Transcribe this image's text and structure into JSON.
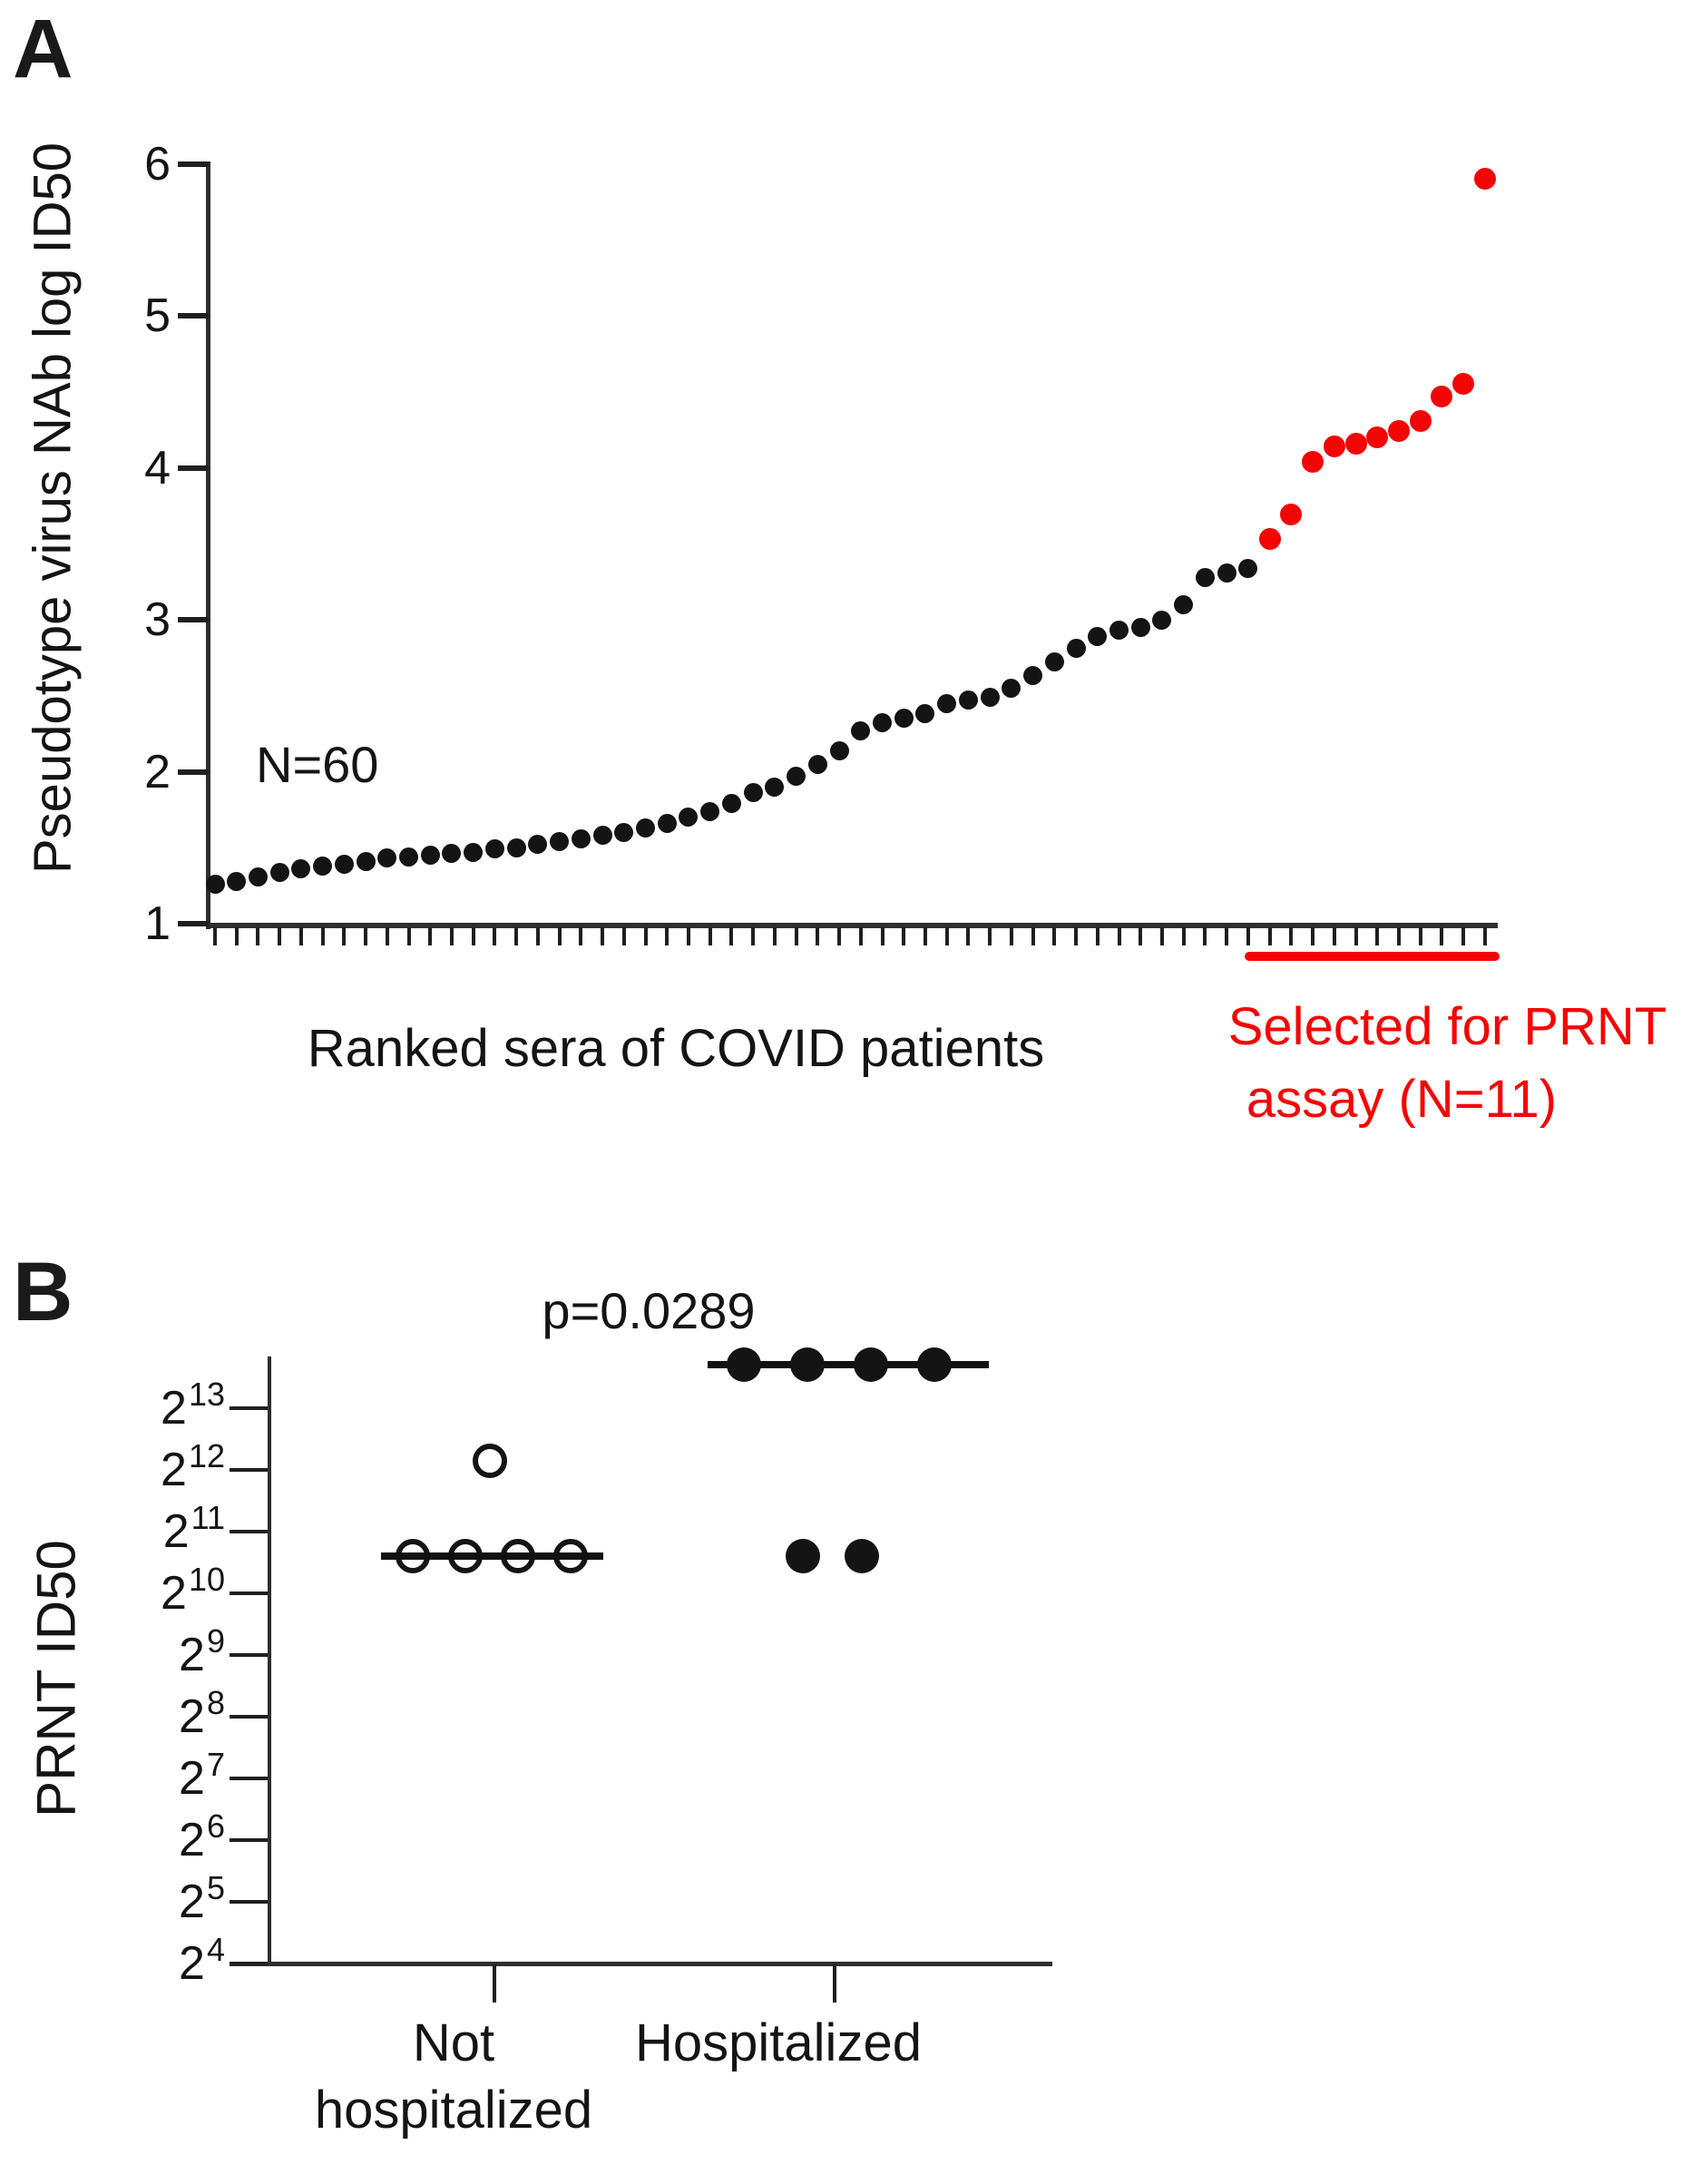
{
  "figure": {
    "panel_a_label": "A",
    "panel_b_label": "B",
    "background": "#ffffff",
    "ink_color": "#141414",
    "accent_red": "#f40505"
  },
  "chart_data": [
    {
      "type": "scatter",
      "panel": "A",
      "title": "",
      "xlabel": "Ranked sera of COVID patients",
      "ylabel": "Pseudotype virus NAb log ID50",
      "ylim": [
        1,
        6
      ],
      "yticks": [
        1,
        2,
        3,
        4,
        5,
        6
      ],
      "x_tick_count": 60,
      "grid": false,
      "n_label": "N=60",
      "selected_label_line1": "Selected for PRNT",
      "selected_label_line2": "assay (N=11)",
      "point_color": "#141414",
      "selected_color": "#f40505",
      "series": [
        {
          "name": "COVID patient sera (pseudotype virus NAb)",
          "color": "#141414",
          "marker": "filled-circle",
          "rank_start": 1,
          "values": [
            1.26,
            1.28,
            1.31,
            1.34,
            1.36,
            1.38,
            1.39,
            1.41,
            1.43,
            1.44,
            1.45,
            1.46,
            1.47,
            1.49,
            1.5,
            1.52,
            1.54,
            1.56,
            1.58,
            1.6,
            1.63,
            1.66,
            1.7,
            1.74,
            1.79,
            1.86,
            1.9,
            1.97,
            2.05,
            2.14,
            2.27,
            2.32,
            2.35,
            2.38,
            2.45,
            2.47,
            2.49,
            2.55,
            2.63,
            2.72,
            2.81,
            2.89,
            2.93,
            2.95,
            3.0,
            3.1,
            3.28,
            3.31,
            3.34
          ]
        },
        {
          "name": "Selected for PRNT assay (N=11)",
          "color": "#f40505",
          "marker": "filled-circle",
          "rank_start": 50,
          "values": [
            3.53,
            3.69,
            4.04,
            4.14,
            4.16,
            4.2,
            4.24,
            4.31,
            4.47,
            4.55,
            5.9
          ]
        }
      ]
    },
    {
      "type": "scatter",
      "panel": "B",
      "title": "",
      "xlabel": "",
      "ylabel": "PRNT ID50",
      "y_scale": "log2",
      "ytick_base": "2",
      "ytick_exponents": [
        13,
        12,
        11,
        10,
        9,
        8,
        7,
        6,
        5,
        4
      ],
      "ylim_exponents": [
        4,
        14
      ],
      "grid": false,
      "p_value_label": "p=0.0289",
      "groups": [
        {
          "name_line1": "Not",
          "name_line2": "hospitalized",
          "marker": "open-circle",
          "axis_x": 545,
          "points": [
            {
              "x": 455,
              "log2": 10.6
            },
            {
              "x": 513,
              "log2": 10.6
            },
            {
              "x": 571,
              "log2": 10.6
            },
            {
              "x": 629,
              "log2": 10.6
            },
            {
              "x": 540,
              "log2": 12.15
            }
          ],
          "median_log2": 10.6,
          "median_x1": 420,
          "median_x2": 665
        },
        {
          "name_line1": "Hospitalized",
          "name_line2": "",
          "marker": "filled-circle",
          "axis_x": 920,
          "points": [
            {
              "x": 820,
              "log2": 13.7
            },
            {
              "x": 890,
              "log2": 13.7
            },
            {
              "x": 960,
              "log2": 13.7
            },
            {
              "x": 1030,
              "log2": 13.7
            },
            {
              "x": 885,
              "log2": 10.6
            },
            {
              "x": 950,
              "log2": 10.6
            }
          ],
          "median_log2": 13.7,
          "median_x1": 780,
          "median_x2": 1090
        }
      ]
    }
  ]
}
